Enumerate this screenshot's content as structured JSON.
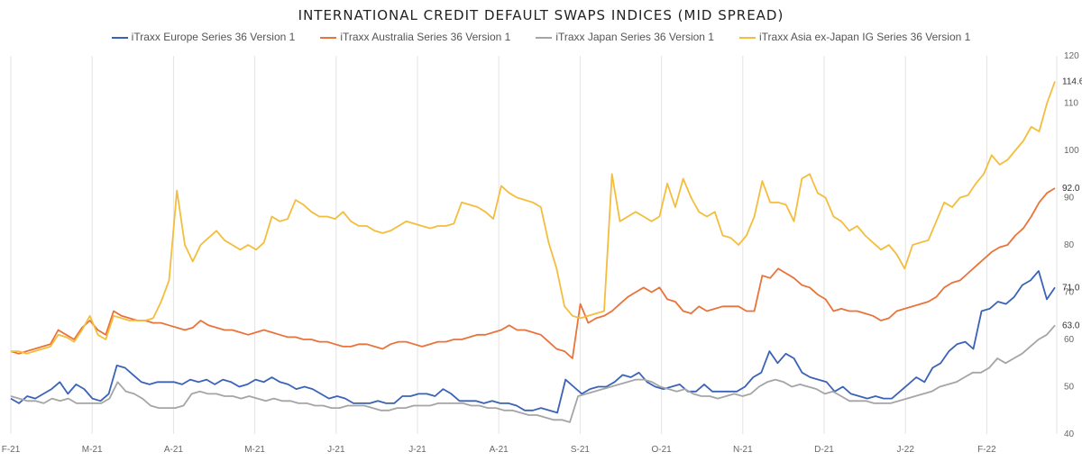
{
  "chart_data": {
    "type": "line",
    "title": "INTERNATIONAL CREDIT DEFAULT SWAPS INDICES (MID SPREAD)",
    "x_tick_labels": [
      "F-21",
      "M-21",
      "A-21",
      "M-21",
      "J-21",
      "J-21",
      "A-21",
      "S-21",
      "O-21",
      "N-21",
      "D-21",
      "J-22",
      "F-22"
    ],
    "ylim": [
      40,
      120
    ],
    "y_ticks": [
      40,
      50,
      60,
      70,
      80,
      90,
      100,
      110,
      120
    ],
    "grid": "vertical",
    "legend_position": "top",
    "series": [
      {
        "name": "iTraxx Europe Series 36 Version 1",
        "color": "#3a63b8",
        "end_label": "71.0",
        "values": [
          47.5,
          46.5,
          48,
          47.5,
          48.5,
          49.5,
          51,
          48.5,
          50.5,
          49.5,
          47.5,
          47,
          48.5,
          54.5,
          54,
          52.5,
          51,
          50.5,
          51,
          51,
          51,
          50.5,
          51.5,
          51,
          51.5,
          50.5,
          51.5,
          51,
          50,
          50.5,
          51.5,
          51,
          52,
          51,
          50.5,
          49.5,
          50,
          49.5,
          48.5,
          47.5,
          48,
          47.5,
          46.5,
          46.5,
          46.5,
          47,
          46.5,
          46.5,
          48,
          48,
          48.5,
          48.5,
          48,
          49.5,
          48.5,
          47,
          47,
          47,
          46.5,
          47,
          46.5,
          46.5,
          46,
          45,
          45,
          45.5,
          45,
          44.5,
          51.5,
          50,
          48.5,
          49.5,
          50,
          50,
          51,
          52.5,
          52,
          53,
          51,
          50,
          49.5,
          50,
          50.5,
          49,
          49,
          50.5,
          49,
          49,
          49,
          49,
          50,
          52,
          53,
          57.5,
          55,
          57,
          56,
          53,
          52,
          51.5,
          51,
          49,
          50,
          48.5,
          48,
          47.5,
          48,
          47.5,
          47.5,
          49,
          50.5,
          52,
          51,
          54,
          55,
          57.5,
          59,
          59.5,
          58,
          66,
          66.5,
          68,
          67.5,
          69,
          71.5,
          72.5,
          74.5,
          68.5,
          71
        ]
      },
      {
        "name": "iTraxx Australia Series 36 Version 1",
        "color": "#e8743b",
        "end_label": "92.0",
        "values": [
          57.5,
          57,
          57.5,
          58,
          58.5,
          59,
          62,
          61,
          60,
          62.5,
          64,
          62,
          61,
          66,
          65,
          64.5,
          64,
          64,
          63.5,
          63.5,
          63,
          62.5,
          62,
          62.5,
          64,
          63,
          62.5,
          62,
          62,
          61.5,
          61,
          61.5,
          62,
          61.5,
          61,
          60.5,
          60.5,
          60,
          60,
          59.5,
          59.5,
          59,
          58.5,
          58.5,
          59,
          59,
          58.5,
          58,
          59,
          59.5,
          59.5,
          59,
          58.5,
          59,
          59.5,
          59.5,
          60,
          60,
          60.5,
          61,
          61,
          61.5,
          62,
          63,
          62,
          62,
          61.5,
          61,
          59.5,
          58,
          57.5,
          56,
          67.5,
          63.5,
          64.5,
          65,
          66,
          67.5,
          69,
          70,
          71,
          70,
          71,
          68.5,
          68,
          66,
          65.5,
          67,
          66,
          66.5,
          67,
          67,
          67,
          66,
          66,
          73.5,
          73,
          75,
          74,
          73,
          71.5,
          71,
          69.5,
          68.5,
          66,
          66.5,
          66,
          66,
          65.5,
          65,
          64,
          64.5,
          66,
          66.5,
          67,
          67.5,
          68,
          69,
          71,
          72,
          72.5,
          74,
          75.5,
          77,
          78.5,
          79.5,
          80,
          82,
          83.5,
          86,
          89,
          91,
          92
        ]
      },
      {
        "name": "iTraxx Japan Series 36 Version 1",
        "color": "#a5a5a5",
        "end_label": "63.0",
        "values": [
          48,
          47.5,
          47,
          47,
          46.5,
          47.5,
          47,
          47.5,
          46.5,
          46.5,
          46.5,
          46.5,
          47.5,
          51,
          49,
          48.5,
          47.5,
          46,
          45.5,
          45.5,
          45.5,
          46,
          48.5,
          49,
          48.5,
          48.5,
          48,
          48,
          47.5,
          48,
          47.5,
          47,
          47.5,
          47,
          47,
          46.5,
          46.5,
          46,
          46,
          45.5,
          45.5,
          46,
          46,
          46,
          45.5,
          45,
          45,
          45.5,
          45.5,
          46,
          46,
          46,
          46.5,
          46.5,
          46.5,
          46.5,
          46,
          46,
          45.5,
          45.5,
          45,
          45,
          44.5,
          44,
          44,
          43.5,
          43,
          43,
          42.5,
          48,
          48.5,
          49,
          49.5,
          50,
          50.5,
          51,
          51.5,
          51.5,
          51,
          50,
          49.5,
          49,
          49.5,
          48.5,
          48,
          48,
          47.5,
          48,
          48.5,
          48,
          48.5,
          50,
          51,
          51.5,
          51,
          50,
          50.5,
          50,
          49.5,
          48.5,
          49,
          48,
          47,
          47,
          47,
          46.5,
          46.5,
          46.5,
          47,
          47.5,
          48,
          48.5,
          49,
          50,
          50.5,
          51,
          52,
          53,
          53,
          54,
          56,
          55,
          56,
          57,
          58.5,
          60,
          61,
          63
        ]
      },
      {
        "name": "iTraxx Asia ex-Japan IG Series 36 Version 1",
        "color": "#f4bd3d",
        "end_label": "114.6",
        "values": [
          57.5,
          57.5,
          57,
          57.5,
          58,
          58.5,
          61,
          60.5,
          59.5,
          62,
          65,
          61,
          60,
          65,
          64.5,
          64,
          64,
          64,
          64.5,
          68,
          72.5,
          91.5,
          80,
          76.5,
          80,
          81.5,
          83,
          81,
          80,
          79,
          80,
          79,
          80.5,
          86,
          85,
          85.5,
          89.5,
          88.5,
          87,
          86,
          86,
          85.5,
          87,
          85,
          84,
          84,
          83,
          82.5,
          83,
          84,
          85,
          84.5,
          84,
          83.5,
          84,
          84,
          84.5,
          89,
          88.5,
          88,
          87,
          85.5,
          92.5,
          91,
          90,
          89.5,
          89,
          88,
          80.5,
          75,
          67,
          65,
          64.5,
          65,
          65.5,
          66,
          95,
          85,
          86,
          87,
          86,
          85,
          86,
          93,
          88,
          94,
          90,
          87,
          86,
          87,
          82,
          81.5,
          80,
          82,
          86,
          93.5,
          89,
          89,
          88.5,
          85,
          94,
          95,
          91,
          90,
          86,
          85,
          83,
          84,
          82,
          80.5,
          79,
          80,
          78,
          75,
          80,
          80.5,
          81,
          85,
          89,
          88,
          90,
          90.5,
          93,
          95,
          99,
          97,
          98,
          100,
          102,
          105,
          104,
          110,
          114.6
        ]
      }
    ]
  }
}
